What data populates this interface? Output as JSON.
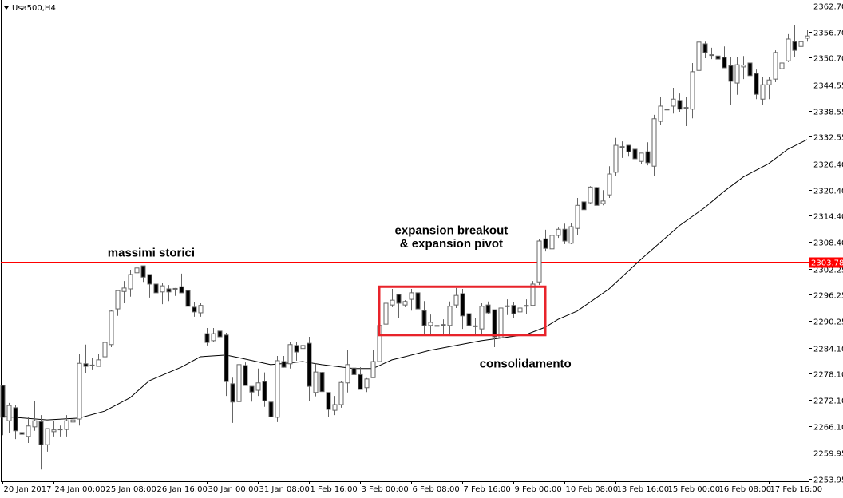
{
  "header": {
    "symbol_label": "Usa500,H4",
    "menu_icon": "triangle-down-icon"
  },
  "chart_data": {
    "type": "candlestick",
    "title": "Usa500,H4",
    "timeframe": "H4",
    "ylim": [
      2253.95,
      2362.7
    ],
    "grid": false,
    "y_ticks": [
      "2362.70",
      "2356.70",
      "2350.70",
      "2344.55",
      "2338.55",
      "2332.55",
      "2326.40",
      "2320.40",
      "2314.40",
      "2308.40",
      "2302.25",
      "2296.25",
      "2290.25",
      "2284.10",
      "2278.10",
      "2272.10",
      "2266.10",
      "2259.95",
      "2253.95"
    ],
    "x_ticks": [
      {
        "bar": 0,
        "label": "20 Jan 2017"
      },
      {
        "bar": 8,
        "label": "24 Jan 00:00"
      },
      {
        "bar": 16,
        "label": "25 Jan 08:00"
      },
      {
        "bar": 24,
        "label": "26 Jan 16:00"
      },
      {
        "bar": 32,
        "label": "30 Jan 00:00"
      },
      {
        "bar": 40,
        "label": "31 Jan 08:00"
      },
      {
        "bar": 48,
        "label": "1 Feb 16:00"
      },
      {
        "bar": 56,
        "label": "3 Feb 00:00"
      },
      {
        "bar": 64,
        "label": "6 Feb 08:00"
      },
      {
        "bar": 72,
        "label": "7 Feb 16:00"
      },
      {
        "bar": 80,
        "label": "9 Feb 00:00"
      },
      {
        "bar": 88,
        "label": "10 Feb 08:00"
      },
      {
        "bar": 96,
        "label": "13 Feb 16:00"
      },
      {
        "bar": 104,
        "label": "15 Feb 00:00"
      },
      {
        "bar": 112,
        "label": "16 Feb 08:00"
      },
      {
        "bar": 120,
        "label": "17 Feb 16:00"
      }
    ],
    "ohlc_fields": [
      "open",
      "high",
      "low",
      "close"
    ],
    "candles": [
      [
        2275.4,
        2275.4,
        2264.0,
        2268.1
      ],
      [
        2267.3,
        2271.4,
        2264.4,
        2270.8
      ],
      [
        2270.3,
        2271.0,
        2263.1,
        2265.0
      ],
      [
        2264.6,
        2265.3,
        2263.1,
        2264.2
      ],
      [
        2263.7,
        2268.1,
        2262.2,
        2266.1
      ],
      [
        2265.9,
        2271.9,
        2265.0,
        2267.3
      ],
      [
        2267.1,
        2268.6,
        2256.1,
        2261.8
      ],
      [
        2261.8,
        2265.5,
        2260.2,
        2265.5
      ],
      [
        2264.8,
        2267.3,
        2263.7,
        2265.2
      ],
      [
        2265.3,
        2266.2,
        2263.7,
        2265.4
      ],
      [
        2265.3,
        2268.6,
        2263.7,
        2267.3
      ],
      [
        2267.0,
        2269.5,
        2264.4,
        2267.5
      ],
      [
        2267.7,
        2282.6,
        2266.2,
        2280.5
      ],
      [
        2280.4,
        2284.8,
        2278.3,
        2279.8
      ],
      [
        2280.0,
        2281.8,
        2279.1,
        2280.1
      ],
      [
        2279.8,
        2282.6,
        2279.8,
        2281.3
      ],
      [
        2282.0,
        2286.6,
        2281.3,
        2285.3
      ],
      [
        2284.8,
        2292.8,
        2284.2,
        2292.5
      ],
      [
        2293.0,
        2297.4,
        2291.4,
        2297.2
      ],
      [
        2297.0,
        2299.4,
        2294.3,
        2297.8
      ],
      [
        2297.6,
        2302.0,
        2295.8,
        2300.9
      ],
      [
        2301.3,
        2303.6,
        2300.2,
        2302.4
      ],
      [
        2302.9,
        2302.9,
        2299.2,
        2300.3
      ],
      [
        2300.9,
        2300.9,
        2295.6,
        2298.7
      ],
      [
        2298.7,
        2300.3,
        2293.6,
        2296.7
      ],
      [
        2296.9,
        2298.9,
        2294.1,
        2298.3
      ],
      [
        2297.6,
        2298.5,
        2294.8,
        2296.9
      ],
      [
        2297.6,
        2297.8,
        2296.0,
        2297.7
      ],
      [
        2298.1,
        2301.1,
        2296.7,
        2296.7
      ],
      [
        2297.2,
        2299.6,
        2292.3,
        2293.6
      ],
      [
        2293.4,
        2294.5,
        2291.2,
        2292.3
      ],
      [
        2292.1,
        2294.3,
        2291.2,
        2293.8
      ],
      [
        2287.3,
        2288.6,
        2284.6,
        2285.3
      ],
      [
        2285.7,
        2288.6,
        2285.3,
        2287.3
      ],
      [
        2287.9,
        2289.7,
        2286.0,
        2286.6
      ],
      [
        2287.0,
        2287.5,
        2273.0,
        2276.3
      ],
      [
        2275.8,
        2277.2,
        2266.8,
        2271.6
      ],
      [
        2271.7,
        2280.9,
        2271.7,
        2280.2
      ],
      [
        2280.0,
        2280.7,
        2275.4,
        2275.4
      ],
      [
        2275.2,
        2275.2,
        2271.7,
        2273.9
      ],
      [
        2274.3,
        2279.3,
        2273.0,
        2276.0
      ],
      [
        2276.3,
        2278.4,
        2270.5,
        2271.9
      ],
      [
        2271.6,
        2273.6,
        2266.1,
        2268.2
      ],
      [
        2268.1,
        2282.2,
        2267.0,
        2281.1
      ],
      [
        2280.9,
        2282.2,
        2279.5,
        2279.6
      ],
      [
        2280.4,
        2285.3,
        2279.3,
        2284.8
      ],
      [
        2284.6,
        2285.3,
        2281.1,
        2283.1
      ],
      [
        2283.9,
        2288.8,
        2282.0,
        2284.6
      ],
      [
        2285.1,
        2286.6,
        2271.9,
        2275.2
      ],
      [
        2273.8,
        2280.4,
        2272.9,
        2278.5
      ],
      [
        2278.4,
        2278.5,
        2274.0,
        2274.0
      ],
      [
        2273.8,
        2273.8,
        2268.1,
        2269.9
      ],
      [
        2269.7,
        2273.0,
        2268.6,
        2271.0
      ],
      [
        2271.0,
        2276.5,
        2270.3,
        2276.1
      ],
      [
        2276.0,
        2283.5,
        2273.8,
        2280.2
      ],
      [
        2279.4,
        2280.2,
        2277.9,
        2277.9
      ],
      [
        2277.9,
        2279.6,
        2274.5,
        2274.5
      ],
      [
        2274.9,
        2277.1,
        2273.9,
        2276.9
      ],
      [
        2277.2,
        2283.5,
        2277.2,
        2280.9
      ],
      [
        2280.9,
        2289.2,
        2280.9,
        2289.2
      ],
      [
        2289.5,
        2297.4,
        2288.6,
        2294.3
      ],
      [
        2293.9,
        2297.6,
        2293.4,
        2295.0
      ],
      [
        2296.3,
        2296.5,
        2290.8,
        2294.3
      ],
      [
        2293.9,
        2295.0,
        2293.4,
        2294.7
      ],
      [
        2295.2,
        2297.6,
        2292.6,
        2296.7
      ],
      [
        2296.7,
        2296.9,
        2287.1,
        2293.0
      ],
      [
        2292.6,
        2294.8,
        2287.1,
        2289.2
      ],
      [
        2289.2,
        2291.7,
        2287.1,
        2289.9
      ],
      [
        2289.2,
        2291.0,
        2287.1,
        2289.0
      ],
      [
        2289.3,
        2290.6,
        2287.1,
        2289.4
      ],
      [
        2289.2,
        2294.7,
        2287.1,
        2293.6
      ],
      [
        2293.9,
        2297.8,
        2293.2,
        2296.1
      ],
      [
        2296.5,
        2297.6,
        2288.4,
        2291.4
      ],
      [
        2291.9,
        2293.4,
        2289.2,
        2289.2
      ],
      [
        2289.0,
        2291.0,
        2287.1,
        2289.1
      ],
      [
        2288.4,
        2294.3,
        2287.1,
        2293.6
      ],
      [
        2293.9,
        2294.7,
        2291.9,
        2292.1
      ],
      [
        2292.8,
        2292.8,
        2284.2,
        2286.6
      ],
      [
        2286.4,
        2295.2,
        2286.2,
        2293.2
      ],
      [
        2293.6,
        2295.2,
        2291.6,
        2293.7
      ],
      [
        2293.8,
        2294.5,
        2291.0,
        2291.9
      ],
      [
        2292.3,
        2294.7,
        2291.0,
        2293.2
      ],
      [
        2293.7,
        2295.2,
        2291.9,
        2293.8
      ],
      [
        2293.8,
        2299.4,
        2293.8,
        2298.7
      ],
      [
        2299.2,
        2309.0,
        2298.5,
        2308.6
      ],
      [
        2309.1,
        2311.2,
        2306.2,
        2306.9
      ],
      [
        2306.8,
        2310.3,
        2306.2,
        2309.9
      ],
      [
        2309.9,
        2311.7,
        2309.3,
        2311.3
      ],
      [
        2311.3,
        2312.6,
        2307.9,
        2308.6
      ],
      [
        2308.1,
        2312.8,
        2307.9,
        2311.9
      ],
      [
        2311.5,
        2318.5,
        2309.9,
        2316.8
      ],
      [
        2317.6,
        2318.3,
        2315.8,
        2315.8
      ],
      [
        2317.4,
        2321.2,
        2317.2,
        2321.0
      ],
      [
        2320.9,
        2321.0,
        2316.8,
        2316.8
      ],
      [
        2317.2,
        2320.3,
        2316.8,
        2317.8
      ],
      [
        2319.2,
        2325.8,
        2318.5,
        2324.0
      ],
      [
        2324.4,
        2332.3,
        2323.6,
        2330.6
      ],
      [
        2330.2,
        2331.5,
        2327.7,
        2330.3
      ],
      [
        2330.6,
        2330.6,
        2328.0,
        2329.1
      ],
      [
        2329.7,
        2329.7,
        2326.2,
        2327.5
      ],
      [
        2326.9,
        2328.8,
        2326.2,
        2328.8
      ],
      [
        2329.1,
        2331.3,
        2326.0,
        2326.6
      ],
      [
        2325.8,
        2337.6,
        2323.5,
        2336.7
      ],
      [
        2336.1,
        2341.6,
        2335.2,
        2339.6
      ],
      [
        2338.8,
        2340.3,
        2337.2,
        2338.9
      ],
      [
        2339.6,
        2343.8,
        2337.9,
        2341.2
      ],
      [
        2340.9,
        2342.5,
        2338.3,
        2338.9
      ],
      [
        2339.2,
        2341.6,
        2335.0,
        2339.3
      ],
      [
        2338.9,
        2349.5,
        2336.8,
        2347.5
      ],
      [
        2347.8,
        2355.2,
        2346.6,
        2354.3
      ],
      [
        2353.9,
        2354.4,
        2350.6,
        2351.9
      ],
      [
        2351.3,
        2353.0,
        2350.4,
        2351.4
      ],
      [
        2351.1,
        2353.3,
        2349.0,
        2350.4
      ],
      [
        2350.8,
        2353.3,
        2348.4,
        2348.4
      ],
      [
        2348.9,
        2350.8,
        2339.9,
        2345.3
      ],
      [
        2344.9,
        2350.8,
        2342.2,
        2349.1
      ],
      [
        2348.6,
        2351.1,
        2345.8,
        2349.0
      ],
      [
        2349.5,
        2350.0,
        2346.6,
        2346.6
      ],
      [
        2347.1,
        2348.0,
        2341.2,
        2342.3
      ],
      [
        2341.2,
        2346.2,
        2339.8,
        2344.5
      ],
      [
        2344.5,
        2346.2,
        2341.2,
        2345.6
      ],
      [
        2345.8,
        2352.4,
        2345.1,
        2351.9
      ],
      [
        2348.2,
        2350.2,
        2347.3,
        2349.5
      ],
      [
        2350.0,
        2356.3,
        2349.7,
        2355.0
      ],
      [
        2354.4,
        2358.3,
        2350.8,
        2352.4
      ],
      [
        2353.3,
        2355.4,
        2350.8,
        2354.4
      ],
      [
        2355.2,
        2357.2,
        2354.4,
        2355.7
      ]
    ],
    "moving_average": [
      [
        0,
        2268.3
      ],
      [
        7,
        2267.5
      ],
      [
        12,
        2267.9
      ],
      [
        16,
        2269.5
      ],
      [
        20,
        2272.6
      ],
      [
        23,
        2276.5
      ],
      [
        28,
        2279.6
      ],
      [
        31,
        2282.0
      ],
      [
        35,
        2282.4
      ],
      [
        37,
        2281.8
      ],
      [
        42,
        2280.2
      ],
      [
        45,
        2280.6
      ],
      [
        47,
        2280.9
      ],
      [
        50,
        2280.2
      ],
      [
        55,
        2279.3
      ],
      [
        58,
        2279.3
      ],
      [
        61,
        2281.3
      ],
      [
        63,
        2282.0
      ],
      [
        67,
        2283.5
      ],
      [
        75,
        2285.7
      ],
      [
        82,
        2287.1
      ],
      [
        85,
        2288.8
      ],
      [
        87,
        2290.6
      ],
      [
        90,
        2292.5
      ],
      [
        95,
        2297.6
      ],
      [
        100,
        2304.4
      ],
      [
        106,
        2312.1
      ],
      [
        110,
        2316.3
      ],
      [
        113,
        2320.0
      ],
      [
        116,
        2323.3
      ],
      [
        120,
        2326.4
      ],
      [
        123,
        2329.7
      ],
      [
        126,
        2331.9
      ]
    ],
    "horizontal_line": {
      "price": 2303.78,
      "label": "2303.78",
      "color": "#ff0000"
    },
    "consolidation_box": {
      "bar_start": 59,
      "bar_end": 85,
      "price_low": 2287.0,
      "price_high": 2298.1,
      "color": "#e8232a"
    },
    "annotations": [
      {
        "text": "massimi storici",
        "bar": 23.3,
        "price": 2305.0
      },
      {
        "text": "expansion breakout",
        "bar": 70.3,
        "price": 2310.2
      },
      {
        "text": "& expansion pivot",
        "bar": 70.3,
        "price": 2307.1
      },
      {
        "text": "consolidamento",
        "bar": 81.9,
        "price": 2279.5
      }
    ],
    "colors": {
      "bull_body": "#ffffff",
      "bear_body": "#000000",
      "wick": "#666666",
      "ma_line": "#000000"
    }
  }
}
